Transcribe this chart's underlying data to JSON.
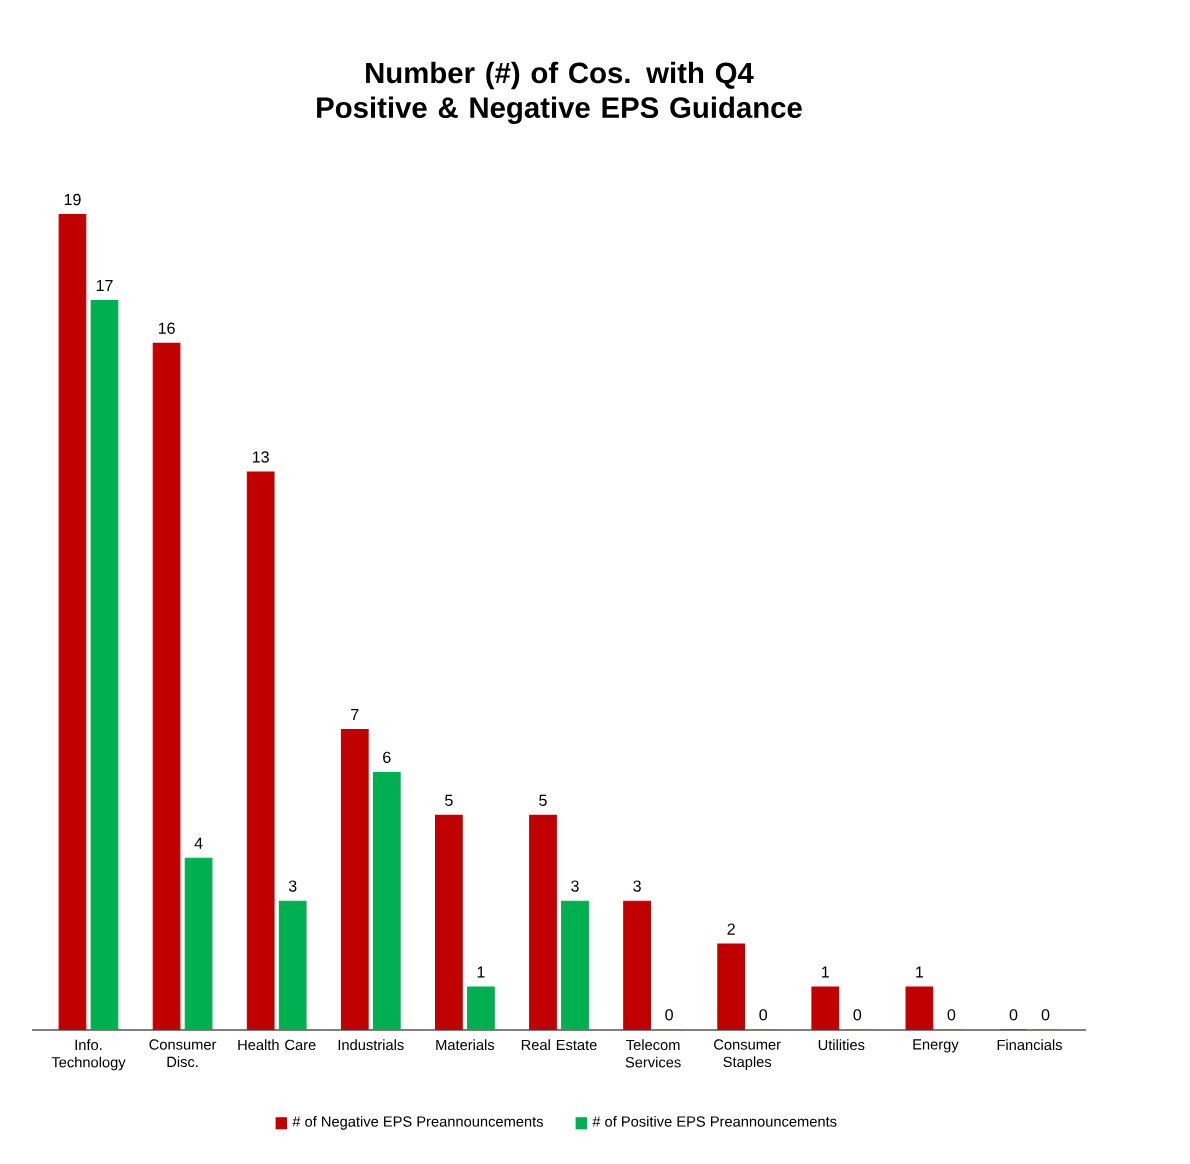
{
  "chart_data": {
    "type": "bar",
    "title": "Number (#) of Cos. with Q4 Positive & Negative EPS Guidance",
    "categories": [
      "Info. Technology",
      "Consumer Disc.",
      "Health Care",
      "Industrials",
      "Materials",
      "Real Estate",
      "Telecom Services",
      "Consumer Staples",
      "Utilities",
      "Energy",
      "Financials"
    ],
    "series": [
      {
        "name": "# of Negative EPS Preannouncements",
        "color": "#c00000",
        "values": [
          19,
          16,
          13,
          7,
          5,
          5,
          3,
          2,
          1,
          1,
          0
        ]
      },
      {
        "name": "# of Positive EPS Preannouncements",
        "color": "#00b050",
        "values": [
          17,
          4,
          3,
          6,
          1,
          3,
          0,
          0,
          0,
          0,
          0
        ]
      }
    ],
    "data_labels": true,
    "legend": "bottom"
  }
}
